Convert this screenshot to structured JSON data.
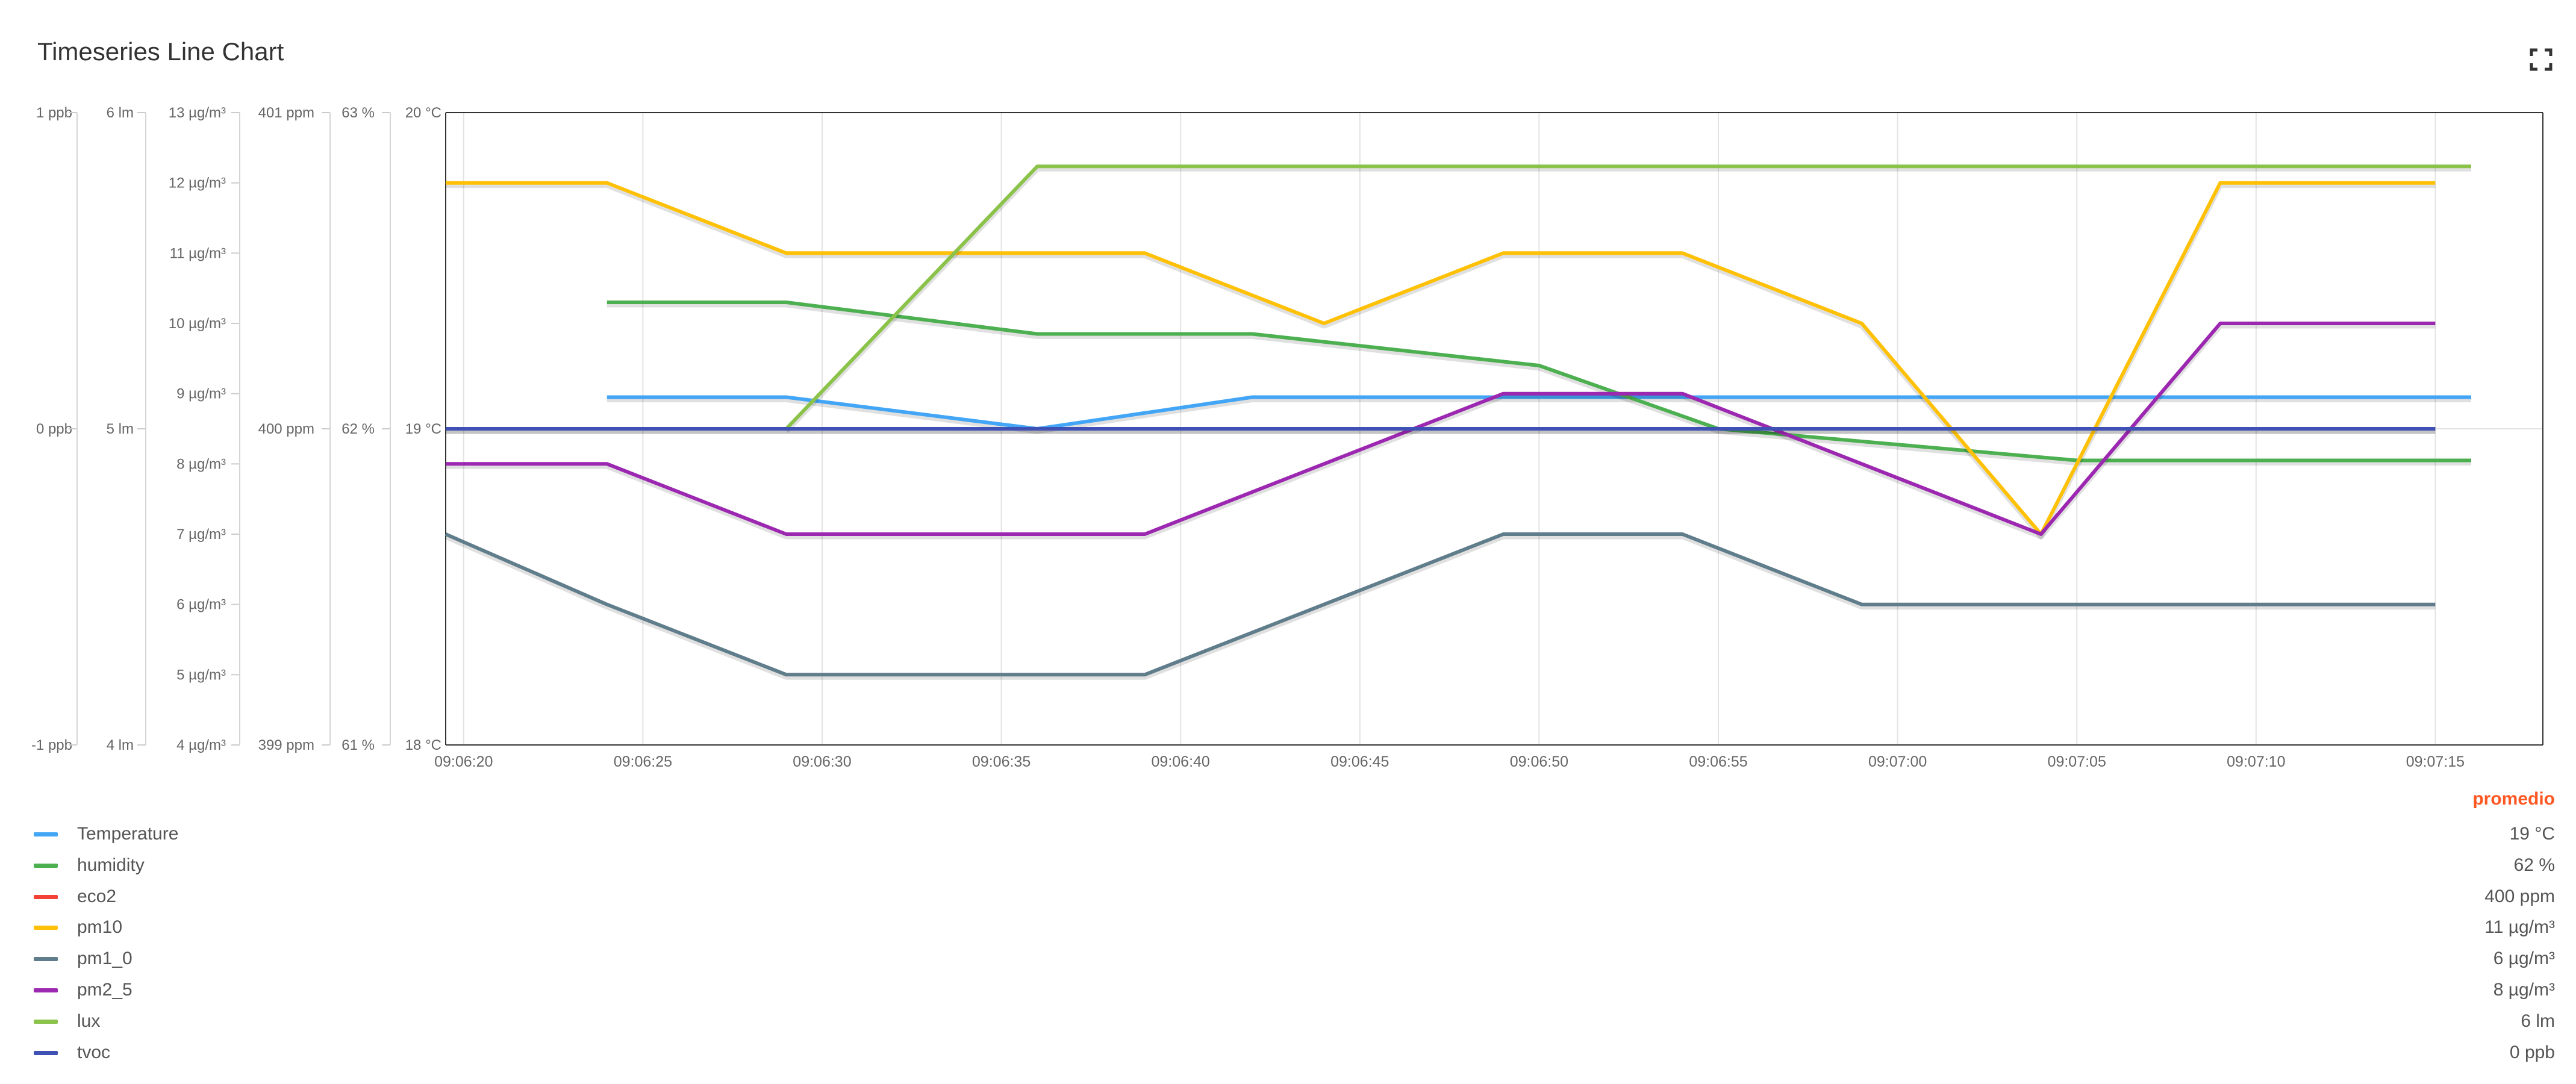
{
  "widget": {
    "title": "Timeseries Line Chart",
    "fullscreen_icon": "fullscreen-icon"
  },
  "legend": {
    "header": "promedio",
    "items": [
      {
        "label": "Temperature",
        "color": "#42a5f5",
        "value": "19 °C"
      },
      {
        "label": "humidity",
        "color": "#4caf50",
        "value": "62 %"
      },
      {
        "label": "eco2",
        "color": "#f44336",
        "value": "400 ppm"
      },
      {
        "label": "pm10",
        "color": "#ffc107",
        "value": "11 µg/m³"
      },
      {
        "label": "pm1_0",
        "color": "#607d8b",
        "value": "6 µg/m³"
      },
      {
        "label": "pm2_5",
        "color": "#9c27b0",
        "value": "8 µg/m³"
      },
      {
        "label": "lux",
        "color": "#8bc34a",
        "value": "6 lm"
      },
      {
        "label": "tvoc",
        "color": "#3f51b5",
        "value": "0 ppb"
      }
    ]
  },
  "chart_data": {
    "type": "line",
    "title": "Timeseries Line Chart",
    "grid": true,
    "legend_placement": "bottom",
    "x_ticks": [
      "09:06:20",
      "09:06:25",
      "09:06:30",
      "09:06:35",
      "09:06:40",
      "09:06:45",
      "09:06:50",
      "09:06:55",
      "09:07:00",
      "09:07:05",
      "09:07:10",
      "09:07:15"
    ],
    "x_range": [
      "09:06:19.5",
      "09:07:18"
    ],
    "y_axes": [
      {
        "id": "tvoc",
        "unit": "ppb",
        "ticks": [
          "-1 ppb",
          "0 ppb",
          "1 ppb"
        ],
        "range": [
          -1,
          1
        ]
      },
      {
        "id": "lux",
        "unit": "lm",
        "ticks": [
          "4 lm",
          "5 lm",
          "6 lm"
        ],
        "range": [
          4,
          6
        ]
      },
      {
        "id": "pm",
        "unit": "µg/m³",
        "ticks": [
          "4 µg/m³",
          "5 µg/m³",
          "6 µg/m³",
          "7 µg/m³",
          "8 µg/m³",
          "9 µg/m³",
          "10 µg/m³",
          "11 µg/m³",
          "12 µg/m³",
          "13 µg/m³"
        ],
        "range": [
          4,
          13
        ]
      },
      {
        "id": "eco2",
        "unit": "ppm",
        "ticks": [
          "399 ppm",
          "400 ppm",
          "401 ppm"
        ],
        "range": [
          399,
          401
        ]
      },
      {
        "id": "humidity",
        "unit": "%",
        "ticks": [
          "61 %",
          "62 %",
          "63 %"
        ],
        "range": [
          61,
          63
        ]
      },
      {
        "id": "temp",
        "unit": "°C",
        "ticks": [
          "18 °C",
          "19 °C",
          "20 °C"
        ],
        "range": [
          18,
          20
        ]
      }
    ],
    "series": [
      {
        "name": "Temperature",
        "axis": "temp",
        "color": "#42a5f5",
        "points": [
          [
            "09:06:24",
            19.1
          ],
          [
            "09:06:29",
            19.1
          ],
          [
            "09:06:36",
            19
          ],
          [
            "09:06:42",
            19.1
          ],
          [
            "09:06:50",
            19.1
          ],
          [
            "09:06:55",
            19.1
          ],
          [
            "09:07:05",
            19.1
          ],
          [
            "09:07:16",
            19.1
          ]
        ]
      },
      {
        "name": "humidity",
        "axis": "humidity",
        "color": "#4caf50",
        "points": [
          [
            "09:06:24",
            62.4
          ],
          [
            "09:06:29",
            62.4
          ],
          [
            "09:06:36",
            62.3
          ],
          [
            "09:06:42",
            62.3
          ],
          [
            "09:06:50",
            62.2
          ],
          [
            "09:06:55",
            62
          ],
          [
            "09:07:00",
            61.95
          ],
          [
            "09:07:05",
            61.9
          ],
          [
            "09:07:16",
            61.9
          ]
        ]
      },
      {
        "name": "eco2",
        "axis": "eco2",
        "color": "#f44336",
        "points": [
          [
            "09:06:19.5",
            400
          ],
          [
            "09:07:15",
            400
          ]
        ]
      },
      {
        "name": "pm10",
        "axis": "pm",
        "color": "#ffc107",
        "points": [
          [
            "09:06:19.5",
            12
          ],
          [
            "09:06:24",
            12
          ],
          [
            "09:06:29",
            11
          ],
          [
            "09:06:34",
            11
          ],
          [
            "09:06:39",
            11
          ],
          [
            "09:06:44",
            10
          ],
          [
            "09:06:49",
            11
          ],
          [
            "09:06:54",
            11
          ],
          [
            "09:06:59",
            10
          ],
          [
            "09:07:04",
            7
          ],
          [
            "09:07:09",
            12
          ],
          [
            "09:07:15",
            12
          ]
        ]
      },
      {
        "name": "pm1_0",
        "axis": "pm",
        "color": "#607d8b",
        "points": [
          [
            "09:06:19.5",
            7
          ],
          [
            "09:06:24",
            6
          ],
          [
            "09:06:29",
            5
          ],
          [
            "09:06:34",
            5
          ],
          [
            "09:06:39",
            5
          ],
          [
            "09:06:44",
            6
          ],
          [
            "09:06:49",
            7
          ],
          [
            "09:06:54",
            7
          ],
          [
            "09:06:59",
            6
          ],
          [
            "09:07:04",
            6
          ],
          [
            "09:07:09",
            6
          ],
          [
            "09:07:15",
            6
          ]
        ]
      },
      {
        "name": "pm2_5",
        "axis": "pm",
        "color": "#9c27b0",
        "points": [
          [
            "09:06:19.5",
            8
          ],
          [
            "09:06:24",
            8
          ],
          [
            "09:06:29",
            7
          ],
          [
            "09:06:34",
            7
          ],
          [
            "09:06:39",
            7
          ],
          [
            "09:06:44",
            8
          ],
          [
            "09:06:49",
            9
          ],
          [
            "09:06:54",
            9
          ],
          [
            "09:06:59",
            8
          ],
          [
            "09:07:04",
            7
          ],
          [
            "09:07:09",
            10
          ],
          [
            "09:07:15",
            10
          ]
        ]
      },
      {
        "name": "lux",
        "axis": "lux",
        "color": "#8bc34a",
        "points": [
          [
            "09:06:29",
            5
          ],
          [
            "09:06:36",
            5.83
          ],
          [
            "09:06:50",
            5.83
          ],
          [
            "09:07:16",
            5.83
          ]
        ]
      },
      {
        "name": "tvoc",
        "axis": "tvoc",
        "color": "#3f51b5",
        "points": [
          [
            "09:06:19.5",
            0
          ],
          [
            "09:07:15",
            0
          ]
        ]
      }
    ]
  }
}
